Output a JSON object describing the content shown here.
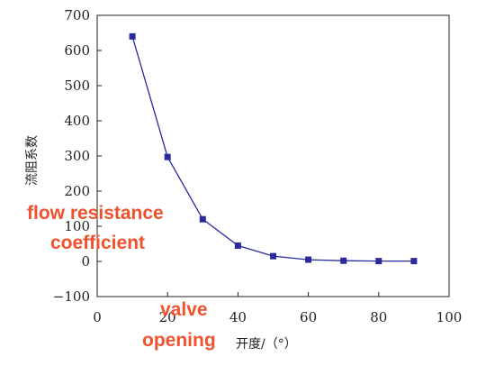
{
  "chart_data": {
    "type": "line",
    "title": "",
    "xlabel": "开度/（°）",
    "ylabel": "流阻系数",
    "xlim": [
      0,
      100
    ],
    "ylim": [
      -100,
      700
    ],
    "xticks": [
      "0",
      "20",
      "40",
      "60",
      "80",
      "100"
    ],
    "yticks": [
      "-100",
      "0",
      "100",
      "200",
      "300",
      "400",
      "500",
      "600",
      "700"
    ],
    "grid": false,
    "series": [
      {
        "x": [
          10,
          20,
          30,
          40,
          50,
          60,
          70,
          80,
          90
        ],
        "y": [
          640,
          297,
          120,
          45,
          15,
          5,
          2,
          1,
          1
        ]
      }
    ],
    "line_color": "#2a2a9c",
    "marker": "square",
    "annotations": [
      {
        "text": "flow resistance",
        "color": "#f0522d"
      },
      {
        "text": "coefficient",
        "color": "#f0522d"
      },
      {
        "text": "valve",
        "color": "#f0522d"
      },
      {
        "text": "opening",
        "color": "#f0522d"
      }
    ]
  }
}
